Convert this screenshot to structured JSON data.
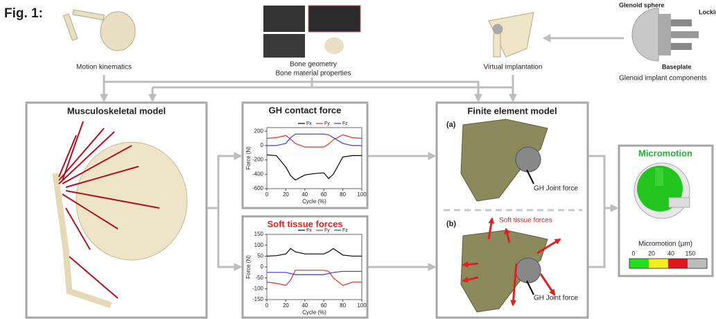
{
  "figure_label": "Fig. 1:",
  "inputs": {
    "motion": "Motion kinematics",
    "bone_geometry": "Bone geometry",
    "bone_material": "Bone material properties",
    "virtual": "Virtual implantation",
    "implant": {
      "sphere": "Glenoid sphere",
      "screw": "Locking screw",
      "baseplate": "Baseplate",
      "caption": "Glenoid implant components"
    }
  },
  "musculoskeletal": {
    "title": "Musculoskeletal model"
  },
  "charts": [
    {
      "type": "line",
      "title": "GH contact force",
      "xlabel": "Cycle (%)",
      "ylabel": "Force (N)",
      "x": [
        0,
        10,
        20,
        25,
        30,
        40,
        50,
        60,
        65,
        70,
        80,
        90,
        100
      ],
      "xlim": [
        0,
        100
      ],
      "xticks": [
        0,
        20,
        40,
        60,
        80,
        100
      ],
      "ylim": [
        -600,
        250
      ],
      "yticks": [
        -600,
        -400,
        -200,
        0,
        200
      ],
      "series": [
        {
          "name": "Fx",
          "color": "#000000",
          "values": [
            -130,
            -140,
            -300,
            -420,
            -480,
            -410,
            -390,
            -380,
            -460,
            -400,
            -160,
            -140,
            -140
          ]
        },
        {
          "name": "Fy",
          "color": "#e0302a",
          "values": [
            100,
            110,
            140,
            90,
            30,
            -20,
            -20,
            -20,
            20,
            80,
            150,
            110,
            100
          ]
        },
        {
          "name": "Fz",
          "color": "#2f3fd0",
          "values": [
            0,
            0,
            30,
            110,
            160,
            160,
            160,
            160,
            150,
            110,
            30,
            0,
            0
          ]
        }
      ]
    },
    {
      "type": "line",
      "title": "Soft tissue forces",
      "xlabel": "Cycle (%)",
      "ylabel": "Force (N)",
      "x": [
        0,
        10,
        20,
        25,
        30,
        40,
        50,
        60,
        65,
        70,
        80,
        90,
        100
      ],
      "xlim": [
        0,
        100
      ],
      "xticks": [
        0,
        20,
        40,
        60,
        80,
        100
      ],
      "ylim": [
        -150,
        150
      ],
      "yticks": [
        -150,
        -100,
        -50,
        0,
        50,
        100,
        150
      ],
      "series": [
        {
          "name": "Fx",
          "color": "#000000",
          "values": [
            50,
            52,
            60,
            85,
            70,
            60,
            60,
            60,
            70,
            85,
            55,
            50,
            50
          ]
        },
        {
          "name": "Fy",
          "color": "#e0302a",
          "values": [
            -70,
            -75,
            -85,
            -60,
            -15,
            -15,
            -15,
            -15,
            -20,
            -50,
            -85,
            -70,
            -70
          ]
        },
        {
          "name": "Fz",
          "color": "#2f3fd0",
          "values": [
            -25,
            -25,
            -25,
            -30,
            -35,
            -35,
            -35,
            -35,
            -30,
            -25,
            -20,
            -20,
            -20
          ]
        }
      ]
    }
  ],
  "fe": {
    "title": "Finite element model",
    "a": "(a)",
    "b": "(b)",
    "joint_force_a": "GH Joint force",
    "soft_tissue": "Soft tissue forces",
    "joint_force_b": "GH Joint force"
  },
  "micromotion": {
    "title": "Micromotion",
    "scale_title": "Micromotion (µm)",
    "scale_labels": [
      "0",
      "20",
      "40",
      "150"
    ]
  }
}
